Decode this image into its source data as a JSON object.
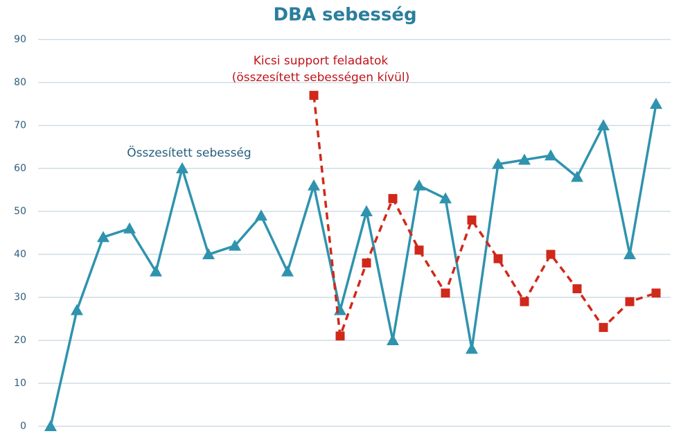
{
  "chart_data": {
    "type": "line",
    "title": "DBA sebesség",
    "categories": [
      null,
      null,
      null,
      null,
      null,
      null,
      null,
      null,
      null,
      null,
      null,
      null,
      null,
      null,
      null,
      null,
      null,
      null,
      null,
      null,
      null,
      null,
      null,
      null
    ],
    "series": [
      {
        "color": "#2f93ae",
        "marker": "triangle",
        "dash": false,
        "values": [
          0,
          27,
          44,
          46,
          36,
          60,
          40,
          42,
          49,
          36,
          56,
          27,
          50,
          20,
          56,
          53,
          18,
          61,
          62,
          63,
          58,
          70,
          40,
          75
        ]
      },
      {
        "color": "#d0281a",
        "marker": "square",
        "dash": true,
        "values": [
          null,
          null,
          null,
          null,
          null,
          null,
          null,
          null,
          null,
          null,
          77,
          21,
          38,
          53,
          41,
          31,
          48,
          39,
          29,
          40,
          32,
          23,
          29,
          31
        ]
      }
    ],
    "annotations": [
      {
        "lines": [
          "Összesített sebesség"
        ],
        "color": "#245e7c"
      },
      {
        "lines": [
          "Kicsi support feladatok",
          "(összesített sebességen kívül)"
        ],
        "color": "#c0141a"
      }
    ],
    "ylim": [
      0,
      90
    ],
    "yticks": [
      0,
      10,
      20,
      30,
      40,
      50,
      60,
      70,
      80,
      90
    ],
    "grid": true
  }
}
